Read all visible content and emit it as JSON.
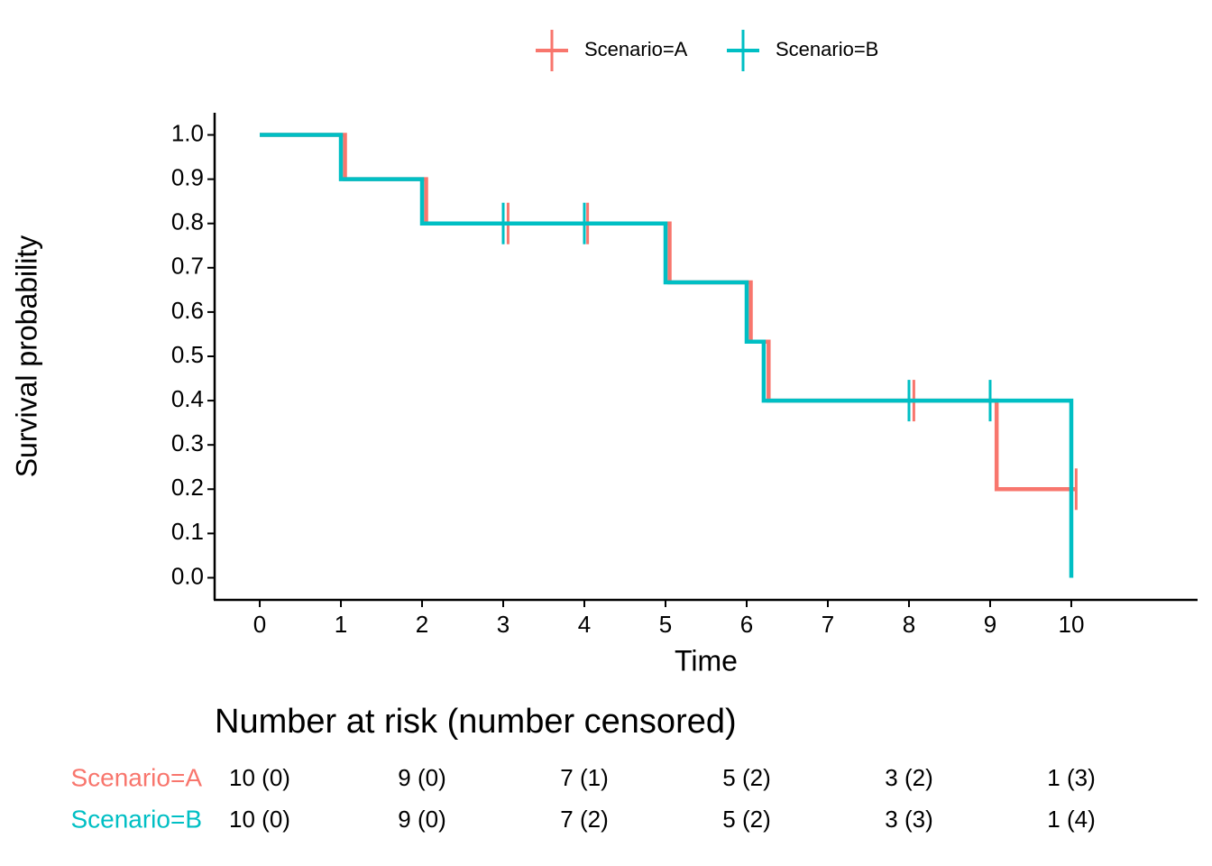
{
  "chart_data": {
    "type": "step",
    "xlabel": "Time",
    "ylabel": "Survival probability",
    "xlim": [
      -0.556,
      11.556
    ],
    "ylim": [
      -0.05,
      1.05
    ],
    "xticks": [
      0,
      1,
      2,
      3,
      4,
      5,
      6,
      7,
      8,
      9,
      10
    ],
    "yticks": [
      {
        "value": 0,
        "label": "0.0"
      },
      0.1,
      0.2,
      0.3,
      0.4,
      0.5,
      0.6,
      0.7,
      0.8,
      0.9,
      {
        "value": 1,
        "label": "1.0"
      }
    ],
    "legend": "top",
    "series": [
      {
        "name": "Scenario=A",
        "color": "#F8766D",
        "x": [
          0,
          1.05,
          2.05,
          5.05,
          6.05,
          6.27,
          9.08,
          10.06
        ],
        "values": [
          1,
          0.9,
          0.8,
          0.667,
          0.533,
          0.4,
          0.2,
          0.2
        ],
        "censor_x": [
          3.06,
          4.04,
          8.06,
          10.06
        ],
        "censor_values": [
          0.8,
          0.8,
          0.4,
          0.2
        ]
      },
      {
        "name": "Scenario=B",
        "color": "#00BFC4",
        "x": [
          0,
          1,
          2,
          5,
          6,
          6.21,
          10
        ],
        "values": [
          1,
          0.9,
          0.8,
          0.667,
          0.533,
          0.4,
          0
        ],
        "censor_x": [
          3,
          4,
          8,
          9
        ],
        "censor_values": [
          0.8,
          0.8,
          0.4,
          0.4
        ]
      }
    ]
  },
  "risk_table": {
    "title": "Number at risk (number censored)",
    "rows": [
      [
        "10 (0)",
        "9 (0)",
        "7 (1)",
        "5 (2)",
        "3 (2)",
        "1 (3)"
      ],
      [
        "10 (0)",
        "9 (0)",
        "7 (2)",
        "5 (2)",
        "3 (3)",
        "1 (4)"
      ]
    ]
  }
}
